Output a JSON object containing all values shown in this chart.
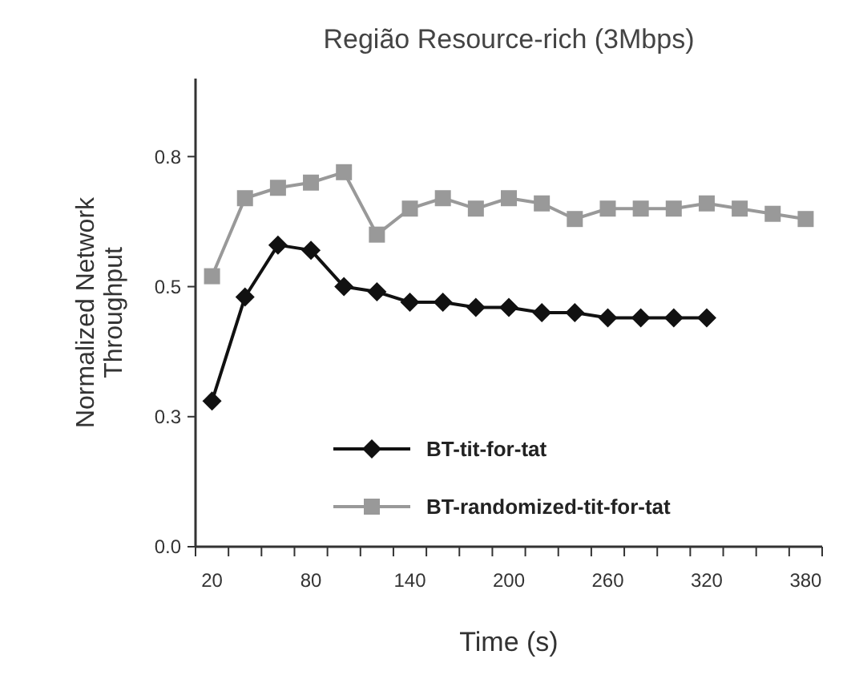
{
  "chart_data": {
    "type": "line",
    "title": "Região Resource-rich (3Mbps)",
    "xlabel": "Time (s)",
    "ylabel": "Normalized Network Throughput",
    "x": [
      20,
      40,
      60,
      80,
      100,
      120,
      140,
      160,
      180,
      200,
      220,
      240,
      260,
      280,
      300,
      320,
      340,
      360,
      380
    ],
    "series": [
      {
        "name": "BT-tit-for-tat",
        "color": "#111111",
        "marker": "diamond",
        "values": [
          0.28,
          0.48,
          0.58,
          0.57,
          0.5,
          0.49,
          0.47,
          0.47,
          0.46,
          0.46,
          0.45,
          0.45,
          0.44,
          0.44,
          0.44,
          0.44,
          null,
          null,
          null
        ]
      },
      {
        "name": "BT-randomized-tit-for-tat",
        "color": "#999999",
        "marker": "square",
        "values": [
          0.52,
          0.67,
          0.69,
          0.7,
          0.72,
          0.6,
          0.65,
          0.67,
          0.65,
          0.67,
          0.66,
          0.63,
          0.65,
          0.65,
          0.65,
          0.66,
          0.65,
          0.64,
          0.63
        ]
      }
    ],
    "xlim": [
      10,
      390
    ],
    "xticks": [
      {
        "value": 10,
        "label": null
      },
      20,
      {
        "value": 30,
        "label": null
      },
      {
        "value": 50,
        "label": null
      },
      {
        "value": 70,
        "label": null
      },
      80,
      {
        "value": 90,
        "label": null
      },
      {
        "value": 110,
        "label": null
      },
      {
        "value": 130,
        "label": null
      },
      140,
      {
        "value": 150,
        "label": null
      },
      {
        "value": 170,
        "label": null
      },
      {
        "value": 190,
        "label": null
      },
      200,
      {
        "value": 210,
        "label": null
      },
      {
        "value": 230,
        "label": null
      },
      {
        "value": 250,
        "label": null
      },
      260,
      {
        "value": 270,
        "label": null
      },
      {
        "value": 290,
        "label": null
      },
      {
        "value": 310,
        "label": null
      },
      320,
      {
        "value": 330,
        "label": null
      },
      {
        "value": 350,
        "label": null
      },
      {
        "value": 370,
        "label": null
      },
      380,
      {
        "value": 390,
        "label": null
      }
    ],
    "ylim": [
      0,
      0.9
    ],
    "yticks": [
      {
        "value": 0,
        "label": "0.0"
      },
      {
        "value": 0.25,
        "label": "0.3"
      },
      {
        "value": 0.5,
        "label": "0.5"
      },
      {
        "value": 0.75,
        "label": "0.8"
      }
    ],
    "grid": false,
    "legend": "bottom",
    "line_style": "solid"
  }
}
